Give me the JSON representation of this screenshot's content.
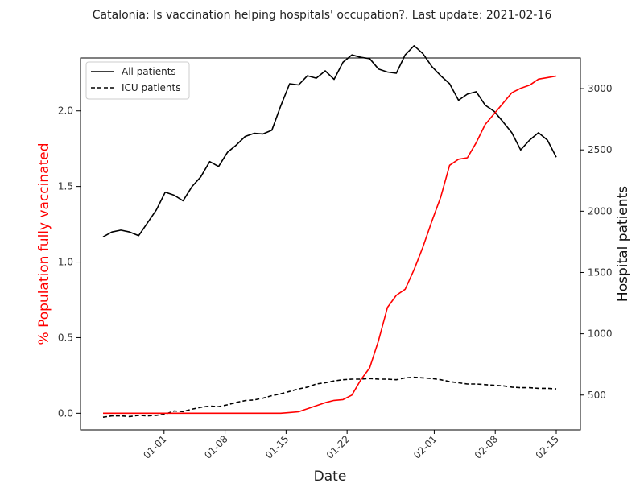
{
  "chart_data": {
    "type": "line",
    "title": "Catalonia: Is vaccination helping hospitals' occupation?. Last update: 2021-02-16",
    "xlabel": "Date",
    "ylabel_left": "% Population fully vaccinated",
    "ylabel_right": "Hospital patients",
    "left_label_color": "#ff0000",
    "x_tick_labels": [
      "01-01",
      "01-08",
      "01-15",
      "01-22",
      "02-01",
      "02-08",
      "02-15"
    ],
    "x_tick_dates": [
      "2021-01-01",
      "2021-01-08",
      "2021-01-15",
      "2021-01-22",
      "2021-02-01",
      "2021-02-08",
      "2021-02-15"
    ],
    "x_range": [
      "2020-12-25",
      "2021-02-15"
    ],
    "y_left_ticks": [
      0.0,
      0.5,
      1.0,
      1.5,
      2.0
    ],
    "y_left_tick_labels": [
      "0.0",
      "0.5",
      "1.0",
      "1.5",
      "2.0"
    ],
    "y_left_range": [
      -0.11,
      2.35
    ],
    "y_right_ticks": [
      500,
      1000,
      1500,
      2000,
      2500,
      3000
    ],
    "y_right_tick_labels": [
      "500",
      "1000",
      "1500",
      "2000",
      "2500",
      "3000"
    ],
    "y_right_range": [
      216,
      3250
    ],
    "grid": false,
    "legend_position": "top-left",
    "series": [
      {
        "name": "All patients",
        "axis": "right",
        "color": "#000000",
        "dash": "solid",
        "values": [
          1790,
          1830,
          1845,
          1830,
          1800,
          1905,
          2010,
          2155,
          2130,
          2085,
          2200,
          2280,
          2405,
          2365,
          2480,
          2540,
          2610,
          2635,
          2630,
          2660,
          2860,
          3040,
          3030,
          3105,
          3085,
          3145,
          3075,
          3215,
          3275,
          3255,
          3245,
          3160,
          3135,
          3125,
          3275,
          3350,
          3285,
          3180,
          3105,
          3040,
          2905,
          2955,
          2975,
          2865,
          2815,
          2730,
          2640,
          2500,
          2580,
          2640,
          2580,
          2440
        ]
      },
      {
        "name": "ICU patients",
        "axis": "right",
        "color": "#000000",
        "dash": "dashed",
        "values": [
          320,
          330,
          330,
          325,
          335,
          330,
          335,
          345,
          370,
          365,
          385,
          400,
          410,
          405,
          420,
          440,
          455,
          460,
          475,
          495,
          510,
          530,
          550,
          565,
          590,
          600,
          615,
          625,
          630,
          630,
          635,
          630,
          630,
          625,
          640,
          645,
          640,
          635,
          625,
          610,
          600,
          590,
          590,
          585,
          580,
          575,
          565,
          560,
          560,
          555,
          555,
          550
        ]
      },
      {
        "name": "% Population fully vaccinated",
        "axis": "left",
        "color": "#ff0000",
        "dash": "solid",
        "values": [
          0.0,
          0.0,
          0.0,
          0.0,
          0.0,
          0.0,
          0.0,
          0.0,
          0.0,
          0.0,
          0.0,
          0.0,
          0.0,
          0.0,
          0.0,
          0.0,
          0.0,
          0.0,
          0.0,
          0.0,
          0.0,
          0.005,
          0.01,
          0.03,
          0.05,
          0.07,
          0.085,
          0.09,
          0.12,
          0.22,
          0.3,
          0.48,
          0.7,
          0.78,
          0.82,
          0.95,
          1.1,
          1.27,
          1.43,
          1.64,
          1.68,
          1.69,
          1.79,
          1.91,
          1.98,
          2.05,
          2.12,
          2.15,
          2.17,
          2.21,
          2.22,
          2.23
        ]
      }
    ]
  }
}
